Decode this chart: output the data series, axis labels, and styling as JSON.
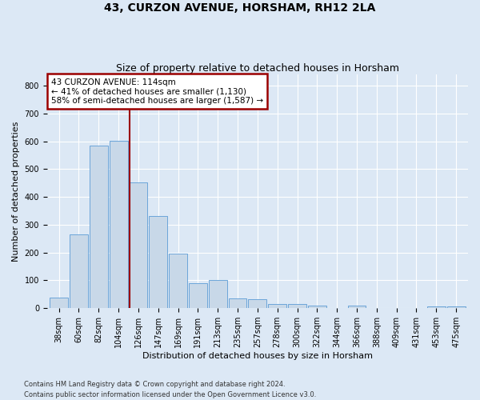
{
  "title": "43, CURZON AVENUE, HORSHAM, RH12 2LA",
  "subtitle": "Size of property relative to detached houses in Horsham",
  "xlabel": "Distribution of detached houses by size in Horsham",
  "ylabel": "Number of detached properties",
  "categories": [
    "38sqm",
    "60sqm",
    "82sqm",
    "104sqm",
    "126sqm",
    "147sqm",
    "169sqm",
    "191sqm",
    "213sqm",
    "235sqm",
    "257sqm",
    "278sqm",
    "300sqm",
    "322sqm",
    "344sqm",
    "366sqm",
    "388sqm",
    "409sqm",
    "431sqm",
    "453sqm",
    "475sqm"
  ],
  "values": [
    38,
    265,
    585,
    603,
    452,
    330,
    195,
    90,
    102,
    35,
    33,
    15,
    15,
    10,
    0,
    8,
    0,
    0,
    0,
    7,
    7
  ],
  "bar_color": "#c8d8e8",
  "bar_edge_color": "#5b9bd5",
  "vline_x": 3.55,
  "vline_color": "#9b0000",
  "annotation_text": "43 CURZON AVENUE: 114sqm\n← 41% of detached houses are smaller (1,130)\n58% of semi-detached houses are larger (1,587) →",
  "annotation_box_color": "#ffffff",
  "annotation_box_edge": "#9b0000",
  "ylim": [
    0,
    840
  ],
  "yticks": [
    0,
    100,
    200,
    300,
    400,
    500,
    600,
    700,
    800
  ],
  "footer": "Contains HM Land Registry data © Crown copyright and database right 2024.\nContains public sector information licensed under the Open Government Licence v3.0.",
  "background_color": "#dce8f5",
  "plot_bg_color": "#dce8f5",
  "grid_color": "#ffffff",
  "title_fontsize": 10,
  "subtitle_fontsize": 9,
  "label_fontsize": 8,
  "tick_fontsize": 7,
  "footer_fontsize": 6,
  "annot_fontsize": 7.5
}
